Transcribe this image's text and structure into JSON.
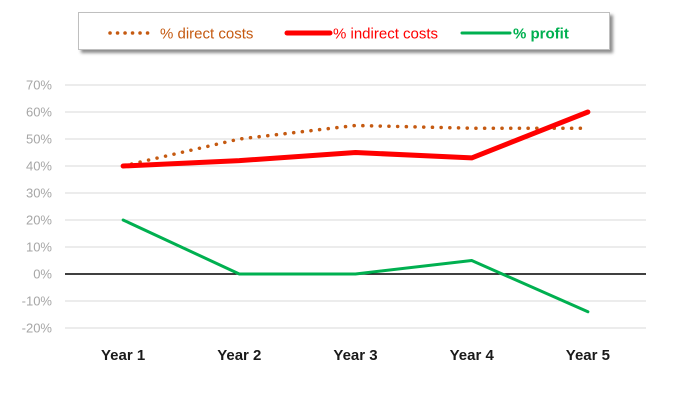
{
  "chart_data": {
    "type": "line",
    "title": "",
    "xlabel": "",
    "ylabel": "",
    "categories": [
      "Year 1",
      "Year 2",
      "Year 3",
      "Year 4",
      "Year 5"
    ],
    "ylim": [
      -20,
      70
    ],
    "yticks": [
      70,
      60,
      50,
      40,
      30,
      20,
      10,
      0,
      -10,
      -20
    ],
    "ytick_labels": [
      "70%",
      "60%",
      "50%",
      "40%",
      "30%",
      "20%",
      "10%",
      "0%",
      "-10%",
      "-20%"
    ],
    "grid": true,
    "legend_position": "top",
    "series": [
      {
        "name": "% direct costs",
        "values": [
          40,
          50,
          55,
          54,
          54
        ],
        "color": "#c55a11",
        "style": "dotted"
      },
      {
        "name": "% indirect costs",
        "values": [
          40,
          42,
          45,
          43,
          60
        ],
        "color": "#ff0000",
        "style": "thick"
      },
      {
        "name": "% profit",
        "values": [
          20,
          0,
          0,
          5,
          -14
        ],
        "color": "#00b050",
        "style": "solid"
      }
    ]
  }
}
